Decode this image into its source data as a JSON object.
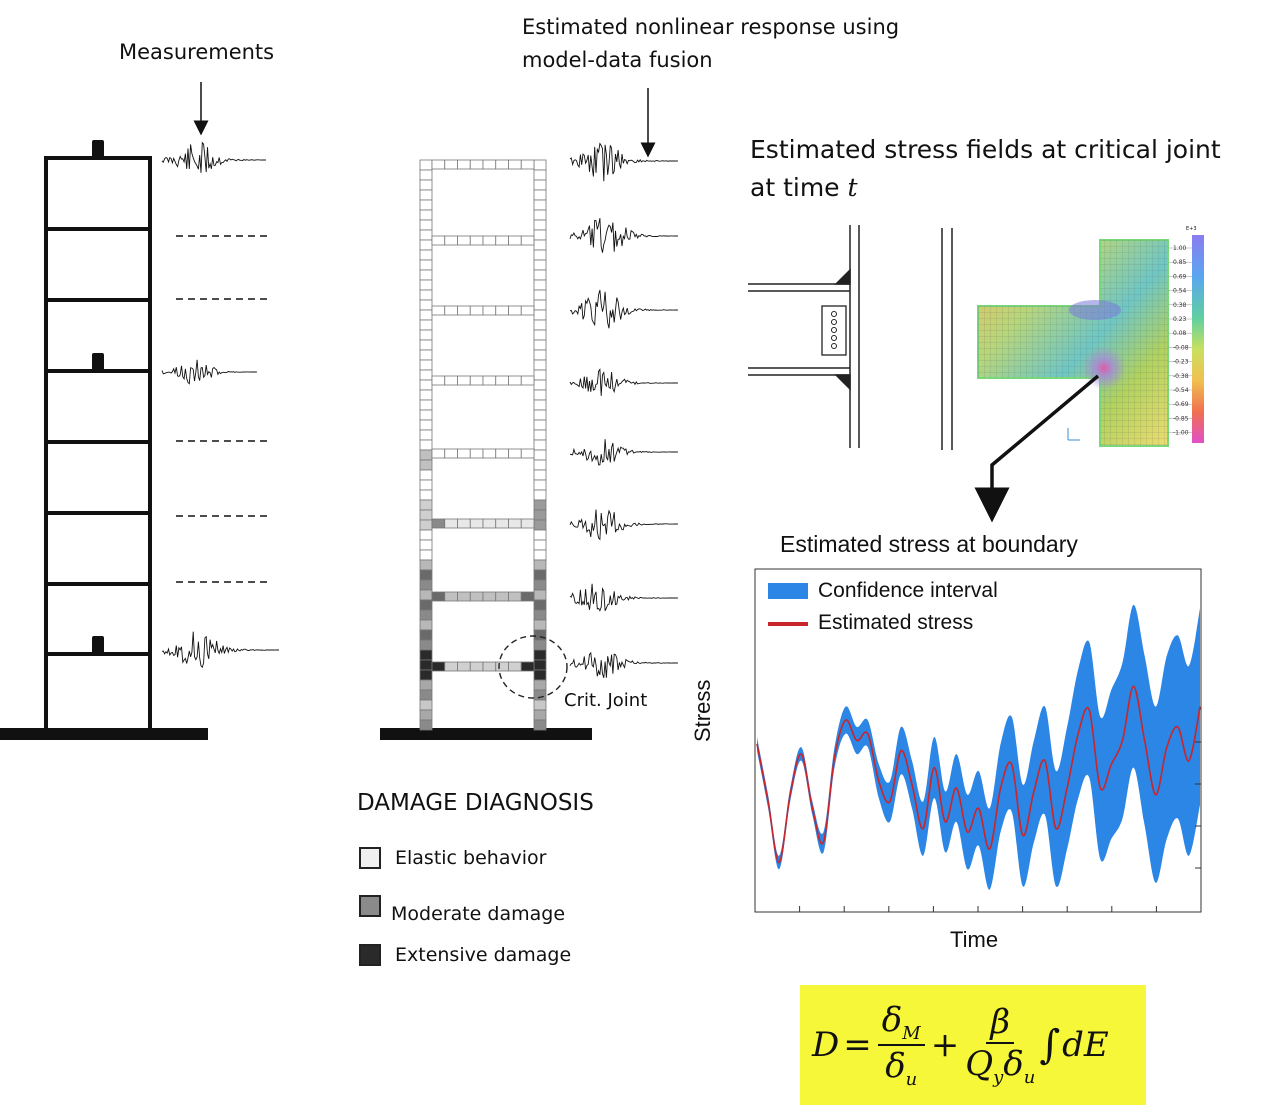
{
  "annotations": {
    "measurements": "Measurements",
    "estimated_response_line1": "Estimated nonlinear response using",
    "estimated_response_line2": "model-data fusion",
    "stress_fields_line1": "Estimated stress fields at critical joint",
    "stress_fields_line2_prefix": "at time ",
    "stress_fields_time_symbol": "t",
    "crit_joint": "Crit. Joint",
    "stress_boundary_title": "Estimated stress at boundary"
  },
  "damage_diagnosis": {
    "title": "DAMAGE DIAGNOSIS",
    "items": [
      {
        "label": "Elastic behavior",
        "color": "#f0f0f0"
      },
      {
        "label": "Moderate  damage",
        "color": "#8a8a8a"
      },
      {
        "label": "Extensive  damage",
        "color": "#2a2a2a"
      }
    ]
  },
  "fem_colorbar": {
    "header": "E+3",
    "ticks": [
      "1.00",
      "0.85",
      "0.69",
      "0.54",
      "0.38",
      "0.23",
      "0.08",
      "-0.08",
      "-0.23",
      "-0.38",
      "-0.54",
      "-0.69",
      "-0.85",
      "-1.00"
    ]
  },
  "chart_data": {
    "type": "area",
    "title": "Estimated stress at boundary",
    "xlabel": "Time",
    "ylabel": "Stress",
    "grid": false,
    "legend_position": "top-left",
    "colors": {
      "confidence": "#2b86e6",
      "estimate": "#c8262b"
    },
    "x": [
      0,
      1,
      2,
      3,
      4,
      5,
      6,
      7,
      8,
      9,
      10,
      11,
      12,
      13,
      14,
      15,
      16,
      17,
      18,
      19,
      20,
      21,
      22,
      23,
      24,
      25,
      26,
      27,
      28,
      29,
      30,
      31,
      32,
      33,
      34,
      35,
      36,
      37,
      38,
      39,
      40
    ],
    "series": [
      {
        "name": "Estimated stress",
        "values": [
          0.9,
          -0.8,
          -2.6,
          -0.6,
          0.6,
          -1.0,
          -2.0,
          0.5,
          1.6,
          1.0,
          1.2,
          -0.2,
          -0.8,
          0.7,
          -0.3,
          -1.6,
          0.2,
          -1.4,
          -0.4,
          -1.7,
          -1.0,
          -2.2,
          -0.4,
          0.3,
          -1.8,
          -0.5,
          0.4,
          -1.6,
          -0.4,
          1.2,
          1.9,
          -0.4,
          0.3,
          1.0,
          2.6,
          1.0,
          -0.6,
          0.8,
          1.4,
          0.4,
          2.0
        ]
      },
      {
        "name": "Confidence interval",
        "values_lower": [
          0.7,
          -1.0,
          -2.8,
          -0.8,
          0.4,
          -1.2,
          -2.3,
          0.2,
          1.2,
          0.6,
          0.8,
          -0.7,
          -1.4,
          0.0,
          -1.0,
          -2.4,
          -0.7,
          -2.3,
          -1.4,
          -2.8,
          -2.1,
          -3.4,
          -1.7,
          -1.1,
          -3.3,
          -2.0,
          -1.2,
          -3.3,
          -2.2,
          -0.7,
          -0.1,
          -2.5,
          -1.9,
          -1.3,
          0.2,
          -1.5,
          -3.2,
          -1.9,
          -1.3,
          -2.4,
          -0.9
        ],
        "values_upper": [
          1.1,
          -0.6,
          -2.4,
          -0.4,
          0.8,
          -0.8,
          -1.7,
          0.8,
          2.0,
          1.4,
          1.6,
          0.3,
          -0.2,
          1.4,
          0.4,
          -0.8,
          1.1,
          -0.5,
          0.6,
          -0.6,
          0.1,
          -1.0,
          0.9,
          1.7,
          -0.3,
          1.0,
          2.0,
          0.1,
          1.4,
          3.1,
          3.9,
          1.7,
          2.5,
          3.3,
          5.0,
          3.5,
          2.0,
          3.5,
          4.1,
          3.2,
          4.9
        ]
      }
    ]
  },
  "formula": {
    "lhs": "D",
    "eq": "=",
    "frac1_num": "δ",
    "frac1_num_sub": "M",
    "frac1_den": "δ",
    "frac1_den_sub": "u",
    "plus": "+",
    "frac2_num": "β",
    "frac2_den_a": "Q",
    "frac2_den_a_sub": "y",
    "frac2_den_b": "δ",
    "frac2_den_b_sub": "u",
    "integral": "∫",
    "tail": "dE"
  }
}
